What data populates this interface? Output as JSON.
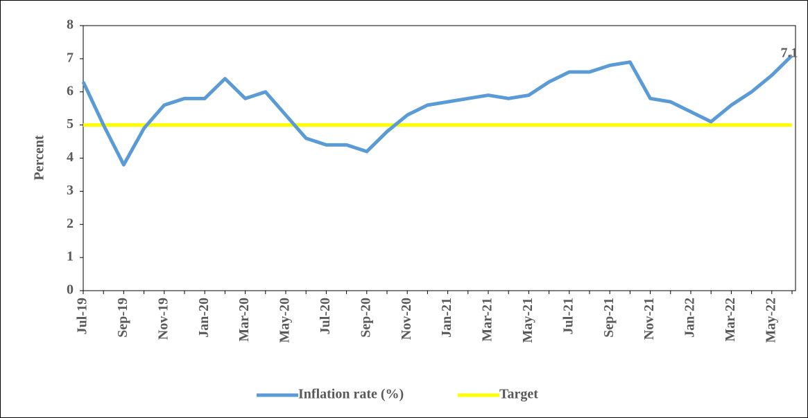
{
  "chart_data": {
    "type": "line",
    "ylabel": "Percent",
    "categories": [
      "Jul-19",
      null,
      "Sep-19",
      null,
      "Nov-19",
      null,
      "Jan-20",
      null,
      "Mar-20",
      null,
      "May-20",
      null,
      "Jul-20",
      null,
      "Sep-20",
      null,
      "Nov-20",
      null,
      "Jan-21",
      null,
      "Mar-21",
      null,
      "May-21",
      null,
      "Jul-21",
      null,
      "Sep-21",
      null,
      "Nov-21",
      null,
      "Jan-22",
      null,
      "Mar-22",
      null,
      "May-22",
      null
    ],
    "series": [
      {
        "name": "Inflation rate (%)",
        "color": "#5b9bd5",
        "values": [
          6.3,
          5.0,
          3.8,
          4.9,
          5.6,
          5.8,
          5.8,
          6.4,
          5.8,
          6.0,
          5.3,
          4.6,
          4.4,
          4.4,
          4.2,
          4.8,
          5.3,
          5.6,
          5.7,
          5.8,
          5.9,
          5.8,
          5.9,
          6.3,
          6.6,
          6.6,
          6.8,
          6.9,
          5.8,
          5.7,
          5.4,
          5.1,
          5.6,
          6.0,
          6.5,
          7.1
        ]
      },
      {
        "name": "Target",
        "color": "#ffff00",
        "values": [
          5,
          5,
          5,
          5,
          5,
          5,
          5,
          5,
          5,
          5,
          5,
          5,
          5,
          5,
          5,
          5,
          5,
          5,
          5,
          5,
          5,
          5,
          5,
          5,
          5,
          5,
          5,
          5,
          5,
          5,
          5,
          5,
          5,
          5,
          5,
          5
        ]
      }
    ],
    "ylim": [
      0,
      8
    ],
    "yticks": [
      0,
      1,
      2,
      3,
      4,
      5,
      6,
      7,
      8
    ],
    "legend": "bottom"
  }
}
